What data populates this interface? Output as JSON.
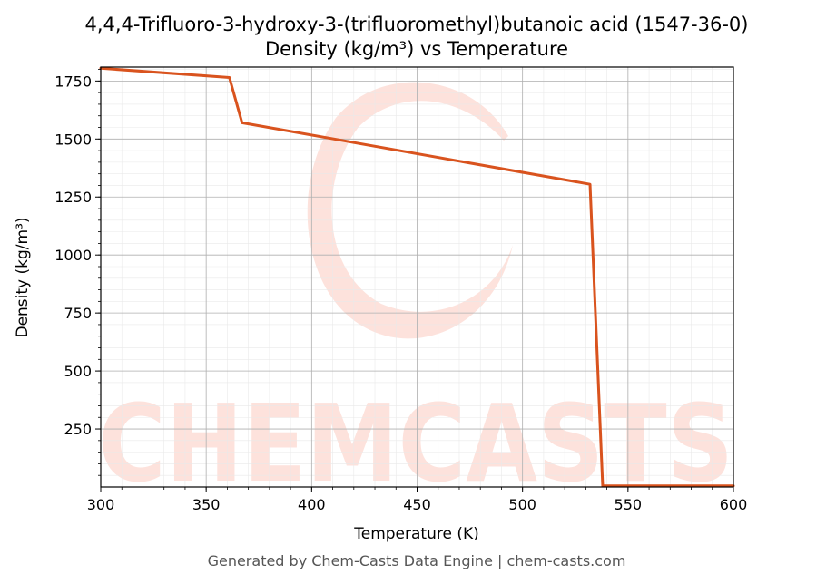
{
  "chart_data": {
    "type": "line",
    "title": "4,4,4-Trifluoro-3-hydroxy-3-(trifluoromethyl)butanoic acid (1547-36-0)",
    "subtitle": "Density (kg/m³) vs Temperature",
    "xlabel": "Temperature (K)",
    "ylabel": "Density (kg/m³)",
    "xlim": [
      300,
      600
    ],
    "ylim": [
      0,
      1810
    ],
    "x_ticks": [
      300,
      350,
      400,
      450,
      500,
      550,
      600
    ],
    "y_ticks": [
      250,
      500,
      750,
      1000,
      1250,
      1500,
      1750
    ],
    "grid": true,
    "series": [
      {
        "color": "#d9531e",
        "x": [
          300,
          361,
          367,
          532,
          538,
          600
        ],
        "y": [
          1805,
          1765,
          1570,
          1305,
          5,
          5
        ]
      }
    ]
  },
  "watermark": {
    "text": "CHEMCASTS",
    "color": "#fde2dc"
  },
  "footer": "Generated by Chem-Casts Data Engine | chem-casts.com"
}
